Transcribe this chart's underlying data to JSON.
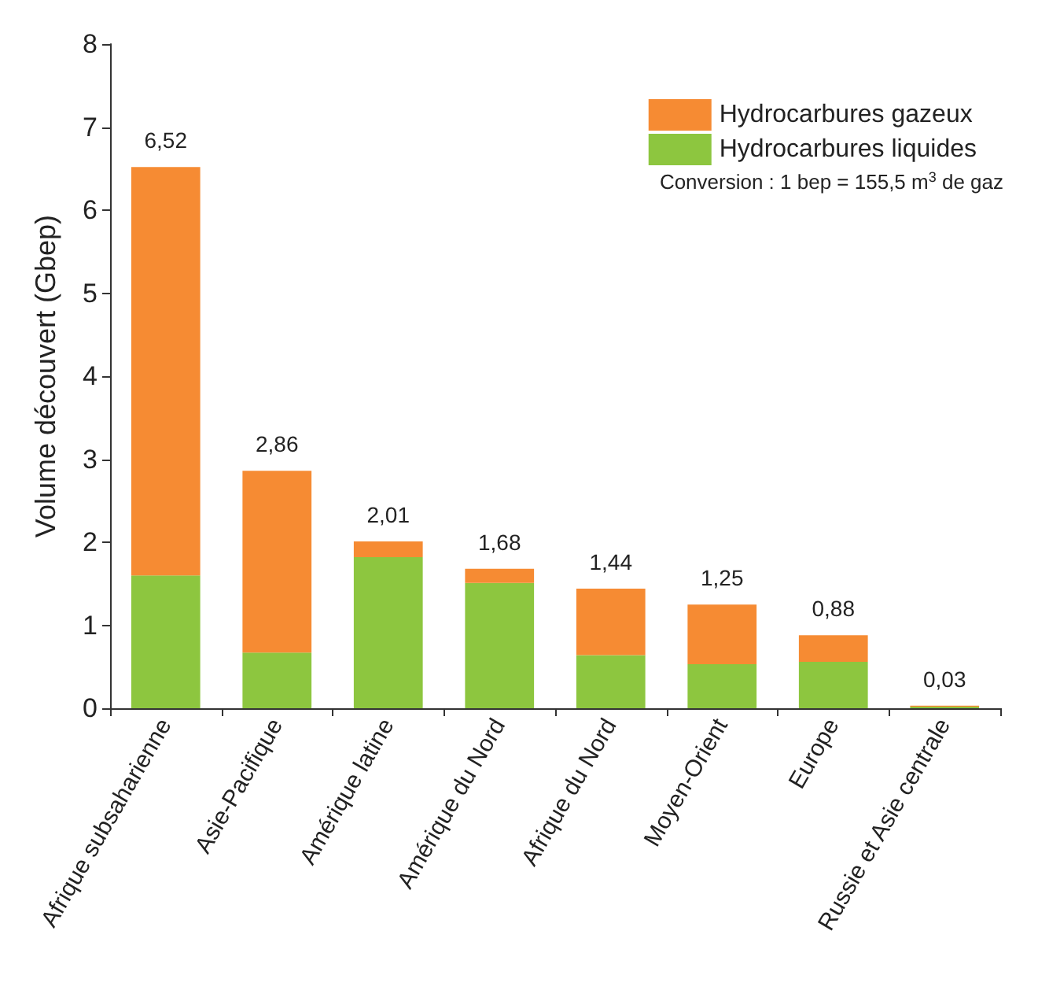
{
  "chart_data": {
    "type": "bar",
    "stacked": true,
    "ylabel": "Volume découvert (Gbep)",
    "categories": [
      "Afrique subsaharienne",
      "Asie-Pacifique",
      "Amérique latine",
      "Amérique du Nord",
      "Afrique du Nord",
      "Moyen-Orient",
      "Europe",
      "Russie et Asie centrale"
    ],
    "series": [
      {
        "name": "Hydrocarbures liquides",
        "color": "#8dc63f",
        "values": [
          1.6,
          0.67,
          1.82,
          1.51,
          0.64,
          0.53,
          0.56,
          0.02
        ]
      },
      {
        "name": "Hydrocarbures gazeux",
        "color": "#f68b33",
        "values": [
          4.92,
          2.19,
          0.19,
          0.17,
          0.8,
          0.72,
          0.32,
          0.01
        ]
      }
    ],
    "totals": [
      "6,52",
      "2,86",
      "2,01",
      "1,68",
      "1,44",
      "1,25",
      "0,88",
      "0,03"
    ],
    "ylim": [
      0,
      8
    ],
    "yticks": [
      0,
      1,
      2,
      3,
      4,
      5,
      6,
      7,
      8
    ],
    "grid": false,
    "legend": "top right",
    "annotations": [
      "Conversion : 1 bep = 155,5 m$^{3}$ de gaz"
    ]
  }
}
